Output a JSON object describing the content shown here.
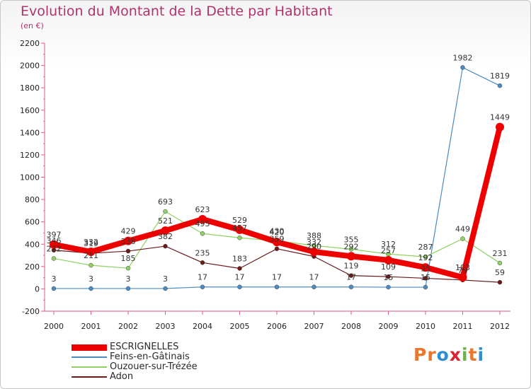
{
  "header": {
    "title": "Evolution du Montant de la Dette par Habitant",
    "unit": "(en €)"
  },
  "brand": {
    "text": "Proxiti",
    "letters": [
      "P",
      "r",
      "o",
      "x",
      "i",
      "t",
      "i"
    ],
    "colors": [
      "#e8762c",
      "#e8762c",
      "#2f8fce",
      "#d9232d",
      "#6ab04c",
      "#e8762c",
      "#2f8fce"
    ]
  },
  "chart_data": {
    "type": "line",
    "title": "Evolution du Montant de la Dette par Habitant",
    "ylabel": "(en €)",
    "xlabel": "",
    "ylim": [
      -200,
      2200
    ],
    "y_ticks": [
      -200,
      0,
      200,
      400,
      600,
      800,
      1000,
      1200,
      1400,
      1600,
      1800,
      2000,
      2200
    ],
    "grid": false,
    "legend_position": "bottom-left",
    "categories": [
      "2000",
      "2001",
      "2002",
      "2003",
      "2004",
      "2005",
      "2006",
      "2007",
      "2008",
      "2009",
      "2010",
      "2011",
      "2012"
    ],
    "series": [
      {
        "name": "ESCRIGNELLES",
        "color": "#ee0000",
        "values": [
          397,
          332,
          429,
          521,
          623,
          529,
          420,
          332,
          292,
          257,
          192,
          103,
          1449
        ]
      },
      {
        "name": "Feins-en-Gâtinais",
        "color": "#4b8bc4",
        "values": [
          3,
          3,
          3,
          3,
          17,
          17,
          17,
          17,
          17,
          15,
          15,
          1982,
          1819
        ]
      },
      {
        "name": "Ouzouer-sur-Trézée",
        "color": "#8fd162",
        "values": [
          272,
          211,
          185,
          693,
          495,
          457,
          430,
          388,
          355,
          312,
          287,
          449,
          231
        ]
      },
      {
        "name": "Adon",
        "color": "#6b1a1a",
        "values": [
          346,
          319,
          338,
          382,
          235,
          183,
          359,
          290,
          119,
          109,
          95,
          79,
          59
        ]
      }
    ]
  }
}
